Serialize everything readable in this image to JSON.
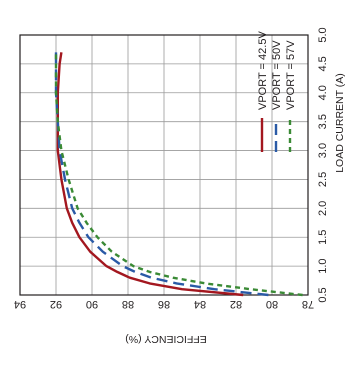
{
  "chart_data": {
    "type": "line",
    "title": "",
    "xlabel": "LOAD CURRENT (A)",
    "ylabel": "EFFICIENCY (%)",
    "xlim": [
      0.5,
      5.0
    ],
    "ylim": [
      78,
      94
    ],
    "x_ticks": [
      "0.5",
      "1.0",
      "1.5",
      "2.0",
      "2.5",
      "3.0",
      "3.5",
      "4.0",
      "4.5",
      "5.0"
    ],
    "y_ticks": [
      "78",
      "80",
      "82",
      "84",
      "86",
      "88",
      "90",
      "92",
      "94"
    ],
    "grid": true,
    "orientation": "rotated 90 degrees clockwise",
    "legend_position": "top-right",
    "series": [
      {
        "name": "VPORT = 42.5V",
        "color": "#a3171f",
        "dash": "solid",
        "x": [
          0.5,
          0.6,
          0.7,
          0.8,
          0.9,
          1.0,
          1.25,
          1.5,
          1.75,
          2.0,
          2.5,
          3.0,
          3.5,
          4.0,
          4.5,
          4.7
        ],
        "y": [
          81.6,
          85.0,
          86.8,
          87.9,
          88.6,
          89.2,
          90.1,
          90.7,
          91.1,
          91.4,
          91.7,
          91.9,
          91.9,
          91.9,
          91.8,
          91.7
        ]
      },
      {
        "name": "VPORT = 50V",
        "color": "#2a5aa6",
        "dash": "long-dash",
        "x": [
          0.5,
          0.6,
          0.7,
          0.8,
          0.9,
          1.0,
          1.25,
          1.5,
          1.75,
          2.0,
          2.5,
          3.0,
          3.5,
          4.0,
          4.5,
          4.7
        ],
        "y": [
          80.2,
          83.2,
          85.3,
          86.7,
          87.6,
          88.3,
          89.4,
          90.2,
          90.7,
          91.1,
          91.5,
          91.8,
          91.9,
          92.0,
          92.0,
          92.0
        ]
      },
      {
        "name": "VPORT = 57V",
        "color": "#3a8a35",
        "dash": "short-dash",
        "x": [
          0.5,
          0.6,
          0.7,
          0.8,
          0.9,
          1.0,
          1.25,
          1.5,
          1.75,
          2.0,
          2.5,
          3.0,
          3.5,
          4.0,
          4.5,
          4.7
        ],
        "y": [
          78.3,
          81.2,
          83.7,
          85.5,
          86.8,
          87.7,
          88.9,
          89.7,
          90.3,
          90.8,
          91.3,
          91.7,
          91.9,
          92.0,
          92.0,
          92.0
        ]
      }
    ]
  }
}
